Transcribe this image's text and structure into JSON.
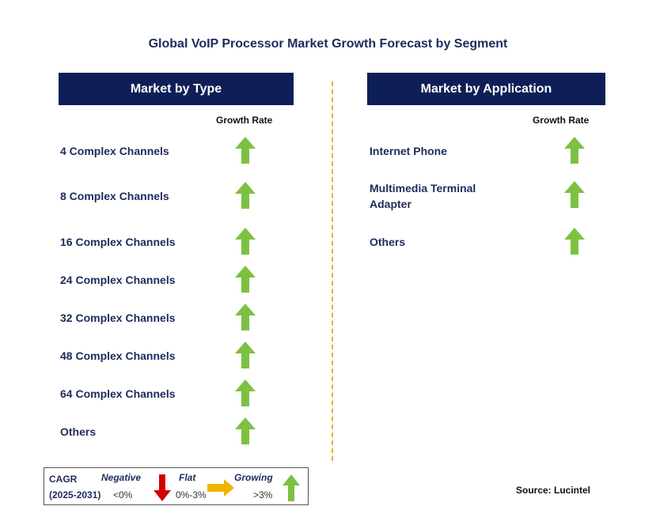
{
  "title": "Global VoIP Processor Market Growth Forecast by Segment",
  "colors": {
    "header_bg": "#0d1f56",
    "growing": "#7cc142",
    "negative": "#d40000",
    "flat": "#f0b400",
    "divider": "#f0b400"
  },
  "type_panel": {
    "header": "Market by Type",
    "growth_label": "Growth Rate",
    "rows": [
      {
        "label": "4 Complex Channels",
        "trend": "growing"
      },
      {
        "label": "8 Complex Channels",
        "trend": "growing"
      },
      {
        "label": "16 Complex Channels",
        "trend": "growing"
      },
      {
        "label": "24 Complex Channels",
        "trend": "growing"
      },
      {
        "label": "32 Complex Channels",
        "trend": "growing"
      },
      {
        "label": "48 Complex Channels",
        "trend": "growing"
      },
      {
        "label": "64 Complex Channels",
        "trend": "growing"
      },
      {
        "label": "Others",
        "trend": "growing"
      }
    ]
  },
  "application_panel": {
    "header": "Market by Application",
    "growth_label": "Growth Rate",
    "rows": [
      {
        "label": "Internet Phone",
        "trend": "growing"
      },
      {
        "label": "Multimedia Terminal",
        "label2": "Adapter",
        "trend": "growing"
      },
      {
        "label": "Others",
        "trend": "growing"
      }
    ]
  },
  "legend": {
    "cagr_label": "CAGR",
    "period": "(2025-2031)",
    "negative": {
      "label": "Negative",
      "range": "<0%",
      "icon": "down-arrow-icon"
    },
    "flat": {
      "label": "Flat",
      "range": "0%-3%",
      "icon": "right-arrow-icon"
    },
    "growing": {
      "label": "Growing",
      "range": ">3%",
      "icon": "up-arrow-icon"
    }
  },
  "source": "Source: Lucintel"
}
